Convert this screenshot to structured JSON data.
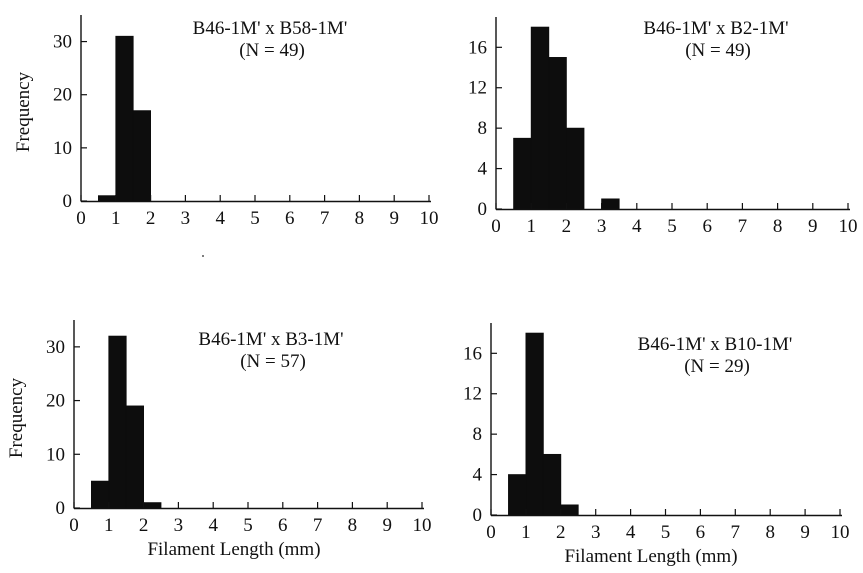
{
  "chart_data": [
    {
      "type": "bar",
      "title": "B46-1M' x B58-1M'",
      "subtitle": "(N = 49)",
      "xlabel": "",
      "ylabel": "Frequency",
      "xlim": [
        0,
        10
      ],
      "ylim": [
        0,
        35
      ],
      "x_ticks": [
        0,
        1,
        2,
        3,
        4,
        5,
        6,
        7,
        8,
        9,
        10
      ],
      "y_ticks": [
        0,
        10,
        20,
        30
      ],
      "bin_width": 0.5,
      "bins": [
        0.5,
        1.0,
        1.5
      ],
      "values": [
        1,
        31,
        17
      ]
    },
    {
      "type": "bar",
      "title": "B46-1M' x B2-1M'",
      "subtitle": "(N = 49)",
      "xlabel": "",
      "ylabel": "",
      "xlim": [
        0,
        10
      ],
      "ylim": [
        0,
        19
      ],
      "x_ticks": [
        0,
        1,
        2,
        3,
        4,
        5,
        6,
        7,
        8,
        9,
        10
      ],
      "y_ticks": [
        0,
        4,
        8,
        12,
        16
      ],
      "bin_width": 0.5,
      "bins": [
        0.5,
        1.0,
        1.5,
        2.0,
        3.0
      ],
      "values": [
        7,
        18,
        15,
        8,
        1
      ]
    },
    {
      "type": "bar",
      "title": "B46-1M' x B3-1M'",
      "subtitle": "(N = 57)",
      "xlabel": "Filament Length (mm)",
      "ylabel": "Frequency",
      "xlim": [
        0,
        10
      ],
      "ylim": [
        0,
        35
      ],
      "x_ticks": [
        0,
        1,
        2,
        3,
        4,
        5,
        6,
        7,
        8,
        9,
        10
      ],
      "y_ticks": [
        0,
        10,
        20,
        30
      ],
      "bin_width": 0.5,
      "bins": [
        0.5,
        1.0,
        1.5,
        2.0
      ],
      "values": [
        5,
        32,
        19,
        1
      ]
    },
    {
      "type": "bar",
      "title": "B46-1M' x B10-1M'",
      "subtitle": "(N = 29)",
      "xlabel": "Filament Length (mm)",
      "ylabel": "",
      "xlim": [
        0,
        10
      ],
      "ylim": [
        0,
        19
      ],
      "x_ticks": [
        0,
        1,
        2,
        3,
        4,
        5,
        6,
        7,
        8,
        9,
        10
      ],
      "y_ticks": [
        0,
        4,
        8,
        12,
        16
      ],
      "bin_width": 0.5,
      "bins": [
        0.5,
        1.0,
        1.5,
        2.0
      ],
      "values": [
        4,
        18,
        6,
        1
      ]
    }
  ]
}
